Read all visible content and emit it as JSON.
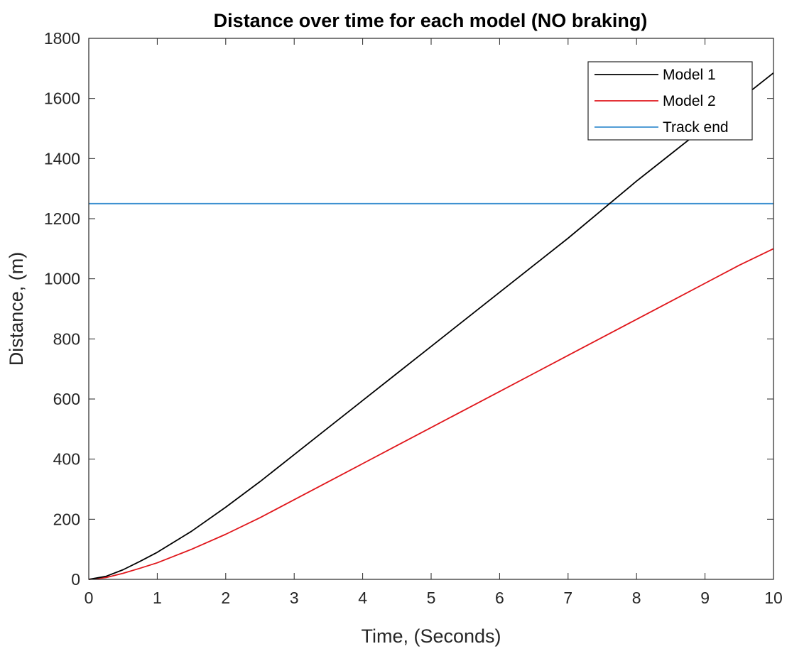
{
  "chart_data": {
    "type": "line",
    "title": "Distance over time for each model (NO braking)",
    "xlabel": "Time, (Seconds)",
    "ylabel": "Distance, (m)",
    "xlim": [
      0,
      10
    ],
    "ylim": [
      0,
      1800
    ],
    "xticks": [
      0,
      1,
      2,
      3,
      4,
      5,
      6,
      7,
      8,
      9,
      10
    ],
    "yticks": [
      0,
      200,
      400,
      600,
      800,
      1000,
      1200,
      1400,
      1600,
      1800
    ],
    "grid": false,
    "legend_position": "top-right",
    "series": [
      {
        "name": "Model 1",
        "color": "#000000",
        "x": [
          0,
          0.25,
          0.5,
          0.75,
          1,
          1.5,
          2,
          2.5,
          3,
          3.5,
          4,
          4.5,
          5,
          5.5,
          6,
          6.5,
          7,
          7.5,
          8,
          8.5,
          9,
          9.5,
          10
        ],
        "y": [
          0,
          10,
          32,
          60,
          90,
          160,
          240,
          325,
          415,
          505,
          595,
          685,
          775,
          865,
          955,
          1045,
          1135,
          1230,
          1325,
          1415,
          1505,
          1595,
          1685
        ]
      },
      {
        "name": "Model 2",
        "color": "#e0161b",
        "x": [
          0,
          0.25,
          0.5,
          0.75,
          1,
          1.5,
          2,
          2.5,
          3,
          3.5,
          4,
          4.5,
          5,
          5.5,
          6,
          6.5,
          7,
          7.5,
          8,
          8.5,
          9,
          9.5,
          10
        ],
        "y": [
          0,
          6,
          20,
          37,
          55,
          100,
          150,
          205,
          265,
          325,
          385,
          445,
          505,
          565,
          625,
          685,
          745,
          805,
          865,
          925,
          985,
          1045,
          1100
        ]
      },
      {
        "name": "Track end",
        "color": "#3a8fd0",
        "x": [
          0,
          10
        ],
        "y": [
          1250,
          1250
        ]
      }
    ]
  }
}
